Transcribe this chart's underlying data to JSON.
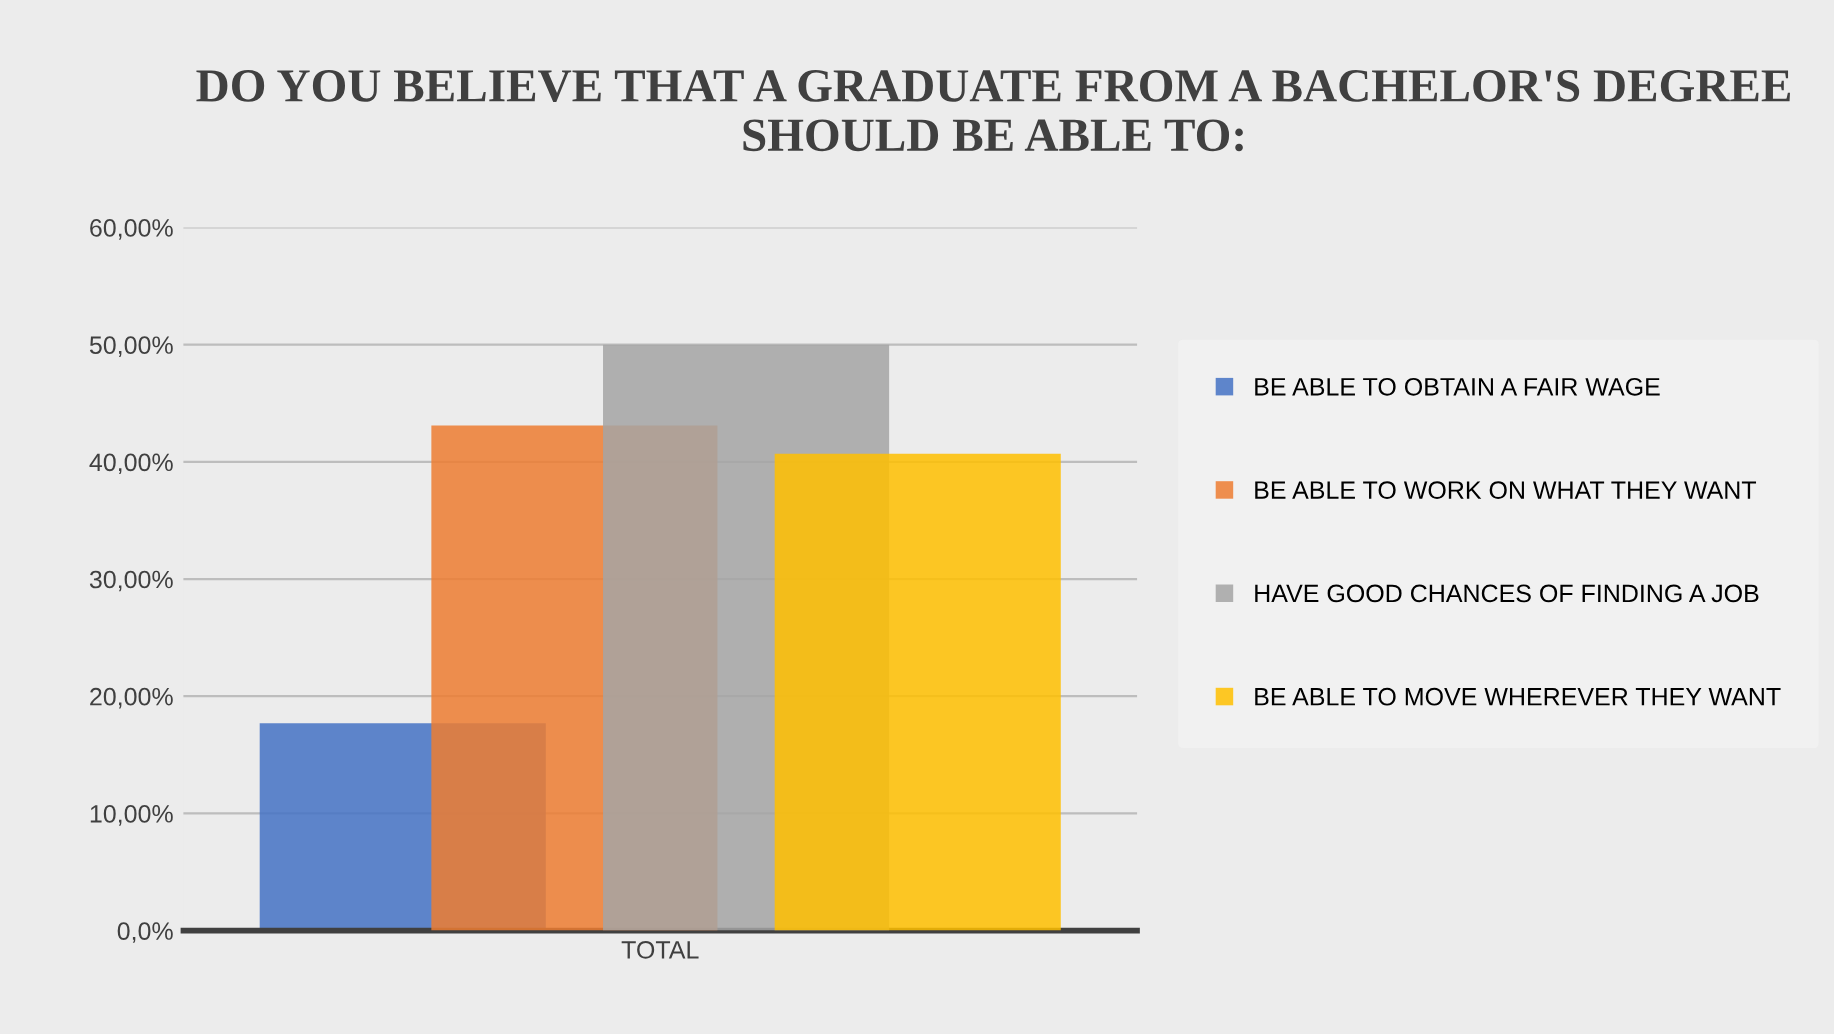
{
  "chart_data": {
    "type": "bar",
    "title": "DO YOU BELIEVE THAT A GRADUATE FROM A BACHELOR'S DEGREE SHOULD BE ABLE TO:",
    "categories": [
      "TOTAL"
    ],
    "series": [
      {
        "name": "BE ABLE TO OBTAIN A FAIR WAGE",
        "color": "#4472c4",
        "values": [
          17.7
        ]
      },
      {
        "name": "BE ABLE TO WORK ON WHAT THEY WANT",
        "color": "#ed7d31",
        "values": [
          43.1
        ]
      },
      {
        "name": "HAVE GOOD CHANCES OF FINDING A JOB",
        "color": "#a5a5a5",
        "values": [
          50.0
        ]
      },
      {
        "name": "BE ABLE TO MOVE WHEREVER THEY WANT",
        "color": "#ffc000",
        "values": [
          40.7
        ]
      }
    ],
    "ylim": [
      0,
      60
    ],
    "yticks": [
      {
        "value": 0,
        "label": "0,0%"
      },
      {
        "value": 10,
        "label": "10,00%"
      },
      {
        "value": 20,
        "label": "20,00%"
      },
      {
        "value": 30,
        "label": "30,00%"
      },
      {
        "value": 40,
        "label": "40,00%"
      },
      {
        "value": 50,
        "label": "50,00%"
      },
      {
        "value": 60,
        "label": "60,00%"
      }
    ],
    "grid": "y",
    "legend": "right"
  }
}
